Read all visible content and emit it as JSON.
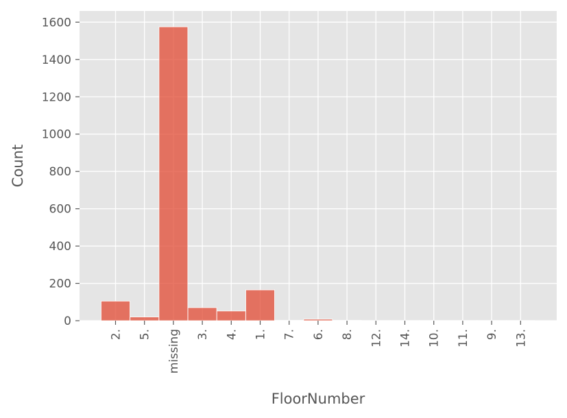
{
  "chart_data": {
    "type": "bar",
    "xlabel": "FloorNumber",
    "ylabel": "Count",
    "categories": [
      "2.",
      "5.",
      "missing",
      "3.",
      "4.",
      "1.",
      "7.",
      "6.",
      "8.",
      "12.",
      "14.",
      "10.",
      "11.",
      "9.",
      "13."
    ],
    "values": [
      105,
      20,
      1575,
      70,
      52,
      165,
      2,
      8,
      2,
      1,
      1,
      1,
      1,
      1,
      1
    ],
    "ylim": [
      0,
      1660
    ],
    "yticks": [
      0,
      200,
      400,
      600,
      800,
      1000,
      1200,
      1400,
      1600
    ],
    "grid": true,
    "bar_color": "#e24a33",
    "background_color": "#e5e5e5",
    "grid_color": "#ffffff"
  }
}
